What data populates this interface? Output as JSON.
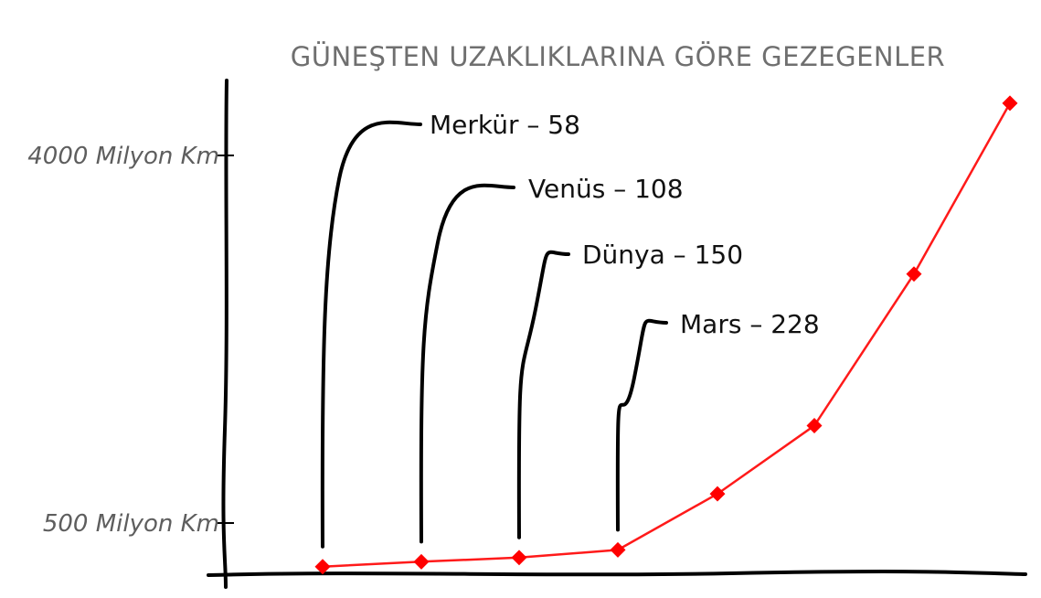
{
  "chart_data": {
    "type": "line",
    "title": "GÜNEŞTEN UZAKLIKLARINA GÖRE GEZEGENLER",
    "xlabel": "",
    "ylabel": "",
    "y_ticks": [
      {
        "value": 500,
        "label": "500 Milyon Km"
      },
      {
        "value": 4000,
        "label": "4000 Milyon Km"
      }
    ],
    "ylim": [
      0,
      4500
    ],
    "grid": false,
    "series": [
      {
        "color": "#ff0000",
        "values": [
          58,
          108,
          150,
          228,
          778,
          1427,
          2871,
          4497
        ]
      }
    ],
    "annotations": [
      {
        "point_index": 0,
        "label": "Merkür – 58"
      },
      {
        "point_index": 1,
        "label": "Venüs – 108"
      },
      {
        "point_index": 2,
        "label": "Dünya – 150"
      },
      {
        "point_index": 3,
        "label": "Mars – 228"
      }
    ]
  }
}
